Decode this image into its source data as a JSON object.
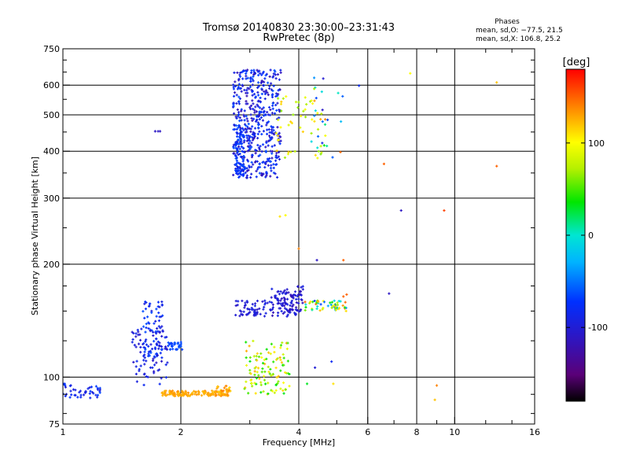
{
  "chart_data": {
    "type": "scatter",
    "title": "Tromsø 20140830 23:30:00–23:31:43",
    "subtitle": "RwPretec (8p)",
    "xlabel": "Frequency [MHz]",
    "ylabel": "Stationary phase Virtual Height [km]",
    "xscale": "log",
    "yscale": "log",
    "xlim": [
      1,
      16
    ],
    "ylim": [
      75,
      750
    ],
    "x_ticks": [
      1,
      2,
      4,
      6,
      8,
      10,
      16
    ],
    "y_ticks": [
      75,
      100,
      200,
      300,
      400,
      500,
      600,
      750
    ],
    "grid": true,
    "stats": {
      "heading": "Phases",
      "line1": "mean, sd,O: −77.5, 21.5",
      "line2": "mean, sd,X: 106.8, 25.2"
    },
    "colorbar": {
      "label": "[deg]",
      "ticks": [
        100,
        0,
        -100
      ],
      "range": [
        -180,
        180
      ],
      "colorscale": "rainbow"
    },
    "clusters": [
      {
        "xr": [
          2.72,
          3.6
        ],
        "yr": [
          340,
          660
        ],
        "n": 480,
        "pr": [
          -120,
          -60
        ]
      },
      {
        "xr": [
          2.75,
          2.9
        ],
        "yr": [
          340,
          470
        ],
        "n": 70,
        "pr": [
          -80,
          -60
        ]
      },
      {
        "xr": [
          3.5,
          4.6
        ],
        "yr": [
          380,
          560
        ],
        "n": 45,
        "pr": [
          60,
          120
        ]
      },
      {
        "xr": [
          4.3,
          5.2
        ],
        "yr": [
          380,
          640
        ],
        "n": 30,
        "pr": [
          -110,
          150
        ]
      },
      {
        "xr": [
          1.85,
          2.03
        ],
        "yr": [
          118,
          124
        ],
        "n": 30,
        "pr": [
          -70,
          -60
        ]
      },
      {
        "xr": [
          1.6,
          1.8
        ],
        "yr": [
          110,
          160
        ],
        "n": 85,
        "pr": [
          -100,
          -60
        ]
      },
      {
        "xr": [
          1.5,
          1.85
        ],
        "yr": [
          95,
          135
        ],
        "n": 70,
        "pr": [
          -110,
          -80
        ]
      },
      {
        "xr": [
          1.78,
          2.65
        ],
        "yr": [
          89,
          92
        ],
        "n": 130,
        "pr": [
          120,
          140
        ]
      },
      {
        "xr": [
          2.45,
          2.7
        ],
        "yr": [
          90,
          95
        ],
        "n": 25,
        "pr": [
          110,
          145
        ]
      },
      {
        "xr": [
          2.9,
          3.8
        ],
        "yr": [
          90,
          125
        ],
        "n": 110,
        "pr": [
          30,
          130
        ]
      },
      {
        "xr": [
          2.75,
          3.4
        ],
        "yr": [
          145,
          160
        ],
        "n": 60,
        "pr": [
          -110,
          -90
        ]
      },
      {
        "xr": [
          3.4,
          4.1
        ],
        "yr": [
          145,
          175
        ],
        "n": 120,
        "pr": [
          -120,
          -90
        ]
      },
      {
        "xr": [
          4.1,
          5.3
        ],
        "yr": [
          150,
          160
        ],
        "n": 55,
        "pr": [
          -70,
          150
        ]
      },
      {
        "xr": [
          1.0,
          1.25
        ],
        "yr": [
          88,
          96
        ],
        "n": 45,
        "pr": [
          -100,
          -65
        ]
      }
    ],
    "points": [
      {
        "x": 1.72,
        "y": 452,
        "p": -110
      },
      {
        "x": 1.75,
        "y": 452,
        "p": -110
      },
      {
        "x": 1.77,
        "y": 452,
        "p": -110
      },
      {
        "x": 3.58,
        "y": 268,
        "p": 110
      },
      {
        "x": 3.7,
        "y": 270,
        "p": 100
      },
      {
        "x": 4.0,
        "y": 220,
        "p": 140
      },
      {
        "x": 4.45,
        "y": 205,
        "p": -110
      },
      {
        "x": 5.2,
        "y": 205,
        "p": 150
      },
      {
        "x": 6.6,
        "y": 370,
        "p": 150
      },
      {
        "x": 7.3,
        "y": 278,
        "p": -110
      },
      {
        "x": 9.4,
        "y": 278,
        "p": 160
      },
      {
        "x": 12.8,
        "y": 365,
        "p": 150
      },
      {
        "x": 7.7,
        "y": 645,
        "p": 100
      },
      {
        "x": 12.8,
        "y": 610,
        "p": 120
      },
      {
        "x": 6.8,
        "y": 167,
        "p": -110
      },
      {
        "x": 9.0,
        "y": 95,
        "p": 140
      },
      {
        "x": 8.9,
        "y": 87,
        "p": 120
      },
      {
        "x": 4.4,
        "y": 106,
        "p": -100
      },
      {
        "x": 4.85,
        "y": 110,
        "p": -80
      },
      {
        "x": 4.9,
        "y": 96,
        "p": 110
      },
      {
        "x": 4.2,
        "y": 96,
        "p": 30
      },
      {
        "x": 5.7,
        "y": 598,
        "p": -80
      },
      {
        "x": 5.2,
        "y": 164,
        "p": 150
      },
      {
        "x": 5.3,
        "y": 166,
        "p": 150
      }
    ]
  }
}
